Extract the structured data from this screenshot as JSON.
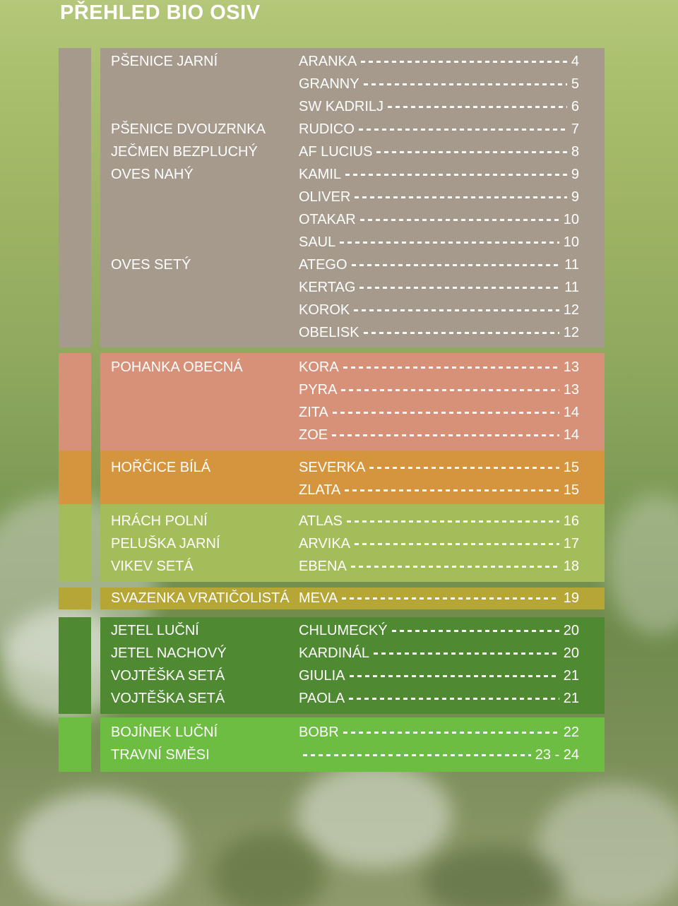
{
  "title": "PŘEHLED BIO OSIV",
  "colors": {
    "grey": "#a69a8d",
    "salmon": "#d79178",
    "orange": "#d5943e",
    "lightgreen": "#a4bd5b",
    "olive": "#b5a636",
    "darkgreen": "#4f8a32",
    "brightgreen": "#6cbd42"
  },
  "sections": [
    {
      "name": "grey",
      "rows": [
        {
          "category": "PŠENICE JARNÍ",
          "variety": "ARANKA",
          "page": "4"
        },
        {
          "category": "",
          "variety": "GRANNY",
          "page": "5"
        },
        {
          "category": "",
          "variety": "SW KADRILJ",
          "page": "6"
        },
        {
          "category": "PŠENICE DVOUZRNKA",
          "variety": "RUDICO",
          "page": "7"
        },
        {
          "category": "JEČMEN BEZPLUCHÝ",
          "variety": "AF LUCIUS",
          "page": "8"
        },
        {
          "category": "OVES NAHÝ",
          "variety": "KAMIL",
          "page": "9"
        },
        {
          "category": "",
          "variety": "OLIVER",
          "page": "9"
        },
        {
          "category": "",
          "variety": "OTAKAR",
          "page": "10"
        },
        {
          "category": "",
          "variety": "SAUL",
          "page": "10"
        },
        {
          "category": "OVES SETÝ",
          "variety": "ATEGO",
          "page": "11"
        },
        {
          "category": "",
          "variety": "KERTAG",
          "page": "11"
        },
        {
          "category": "",
          "variety": "KOROK",
          "page": "12"
        },
        {
          "category": "",
          "variety": "OBELISK",
          "page": "12"
        }
      ]
    },
    {
      "name": "salmon",
      "rows": [
        {
          "category": "POHANKA OBECNÁ",
          "variety": "KORA",
          "page": "13"
        },
        {
          "category": "",
          "variety": "PYRA",
          "page": "13"
        },
        {
          "category": "",
          "variety": "ZITA",
          "page": "14"
        },
        {
          "category": "",
          "variety": "ZOE",
          "page": "14"
        }
      ]
    },
    {
      "name": "orange",
      "rows": [
        {
          "category": "HOŘČICE BÍLÁ",
          "variety": "SEVERKA",
          "page": "15"
        },
        {
          "category": "",
          "variety": "ZLATA",
          "page": "15"
        }
      ]
    },
    {
      "name": "lightgreen",
      "rows": [
        {
          "category": "HRÁCH POLNÍ",
          "variety": "ATLAS",
          "page": "16"
        },
        {
          "category": "PELUŠKA JARNÍ",
          "variety": "ARVIKA",
          "page": "17"
        },
        {
          "category": "VIKEV SETÁ",
          "variety": "EBENA",
          "page": "18"
        }
      ]
    },
    {
      "name": "olive",
      "rows": [
        {
          "category": "SVAZENKA VRATIČOLISTÁ",
          "variety": "MEVA",
          "page": "19"
        }
      ]
    },
    {
      "name": "darkgreen",
      "rows": [
        {
          "category": "JETEL LUČNÍ",
          "variety": "CHLUMECKÝ",
          "page": "20"
        },
        {
          "category": "JETEL NACHOVÝ",
          "variety": "KARDINÁL",
          "page": "20"
        },
        {
          "category": "VOJTĚŠKA SETÁ",
          "variety": "GIULIA",
          "page": "21"
        },
        {
          "category": "VOJTĚŠKA SETÁ",
          "variety": "PAOLA",
          "page": "21"
        }
      ]
    },
    {
      "name": "brightgreen",
      "rows": [
        {
          "category": "BOJÍNEK LUČNÍ",
          "variety": "BOBR",
          "page": "22"
        },
        {
          "category": "TRAVNÍ SMĚSI",
          "variety": "",
          "page": "23 - 24"
        }
      ]
    }
  ]
}
